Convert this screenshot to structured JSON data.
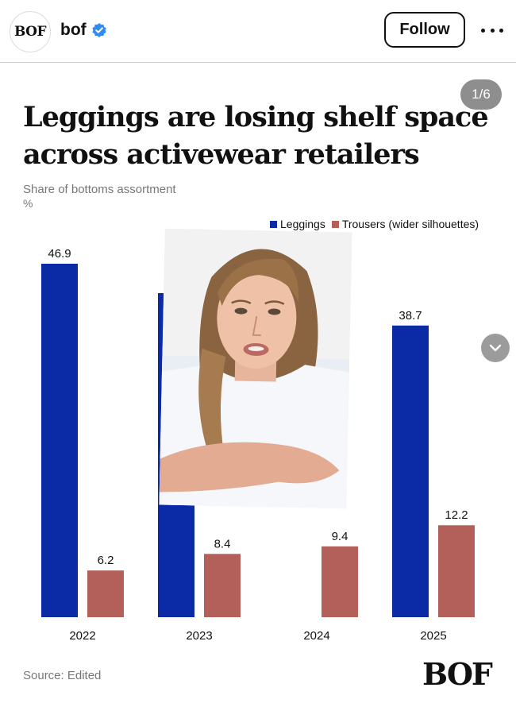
{
  "header": {
    "avatar_text": "BOF",
    "account_name": "bof",
    "follow_label": "Follow"
  },
  "post": {
    "slide_counter": "1/6",
    "headline": "Leggings are losing shelf space across activewear retailers",
    "subtitle": "Share of bottoms assortment",
    "unit": "%",
    "source": "Source: Edited",
    "logo_text": "BOF"
  },
  "chart_data": {
    "type": "bar",
    "categories": [
      "2022",
      "2023",
      "2024",
      "2025"
    ],
    "series": [
      {
        "name": "Leggings",
        "values": [
          46.9,
          43.0,
          null,
          38.7
        ],
        "color": "#0a2aa6"
      },
      {
        "name": "Trousers (wider silhouettes)",
        "values": [
          6.2,
          8.4,
          9.4,
          12.2
        ],
        "color": "#b35f5a"
      }
    ],
    "ylim": [
      0,
      46.9
    ],
    "legend": "top-right",
    "grid": false
  },
  "icons": {
    "verified": "verified-badge-icon",
    "more": "more-options-icon",
    "scroll": "chevron-down-icon"
  }
}
